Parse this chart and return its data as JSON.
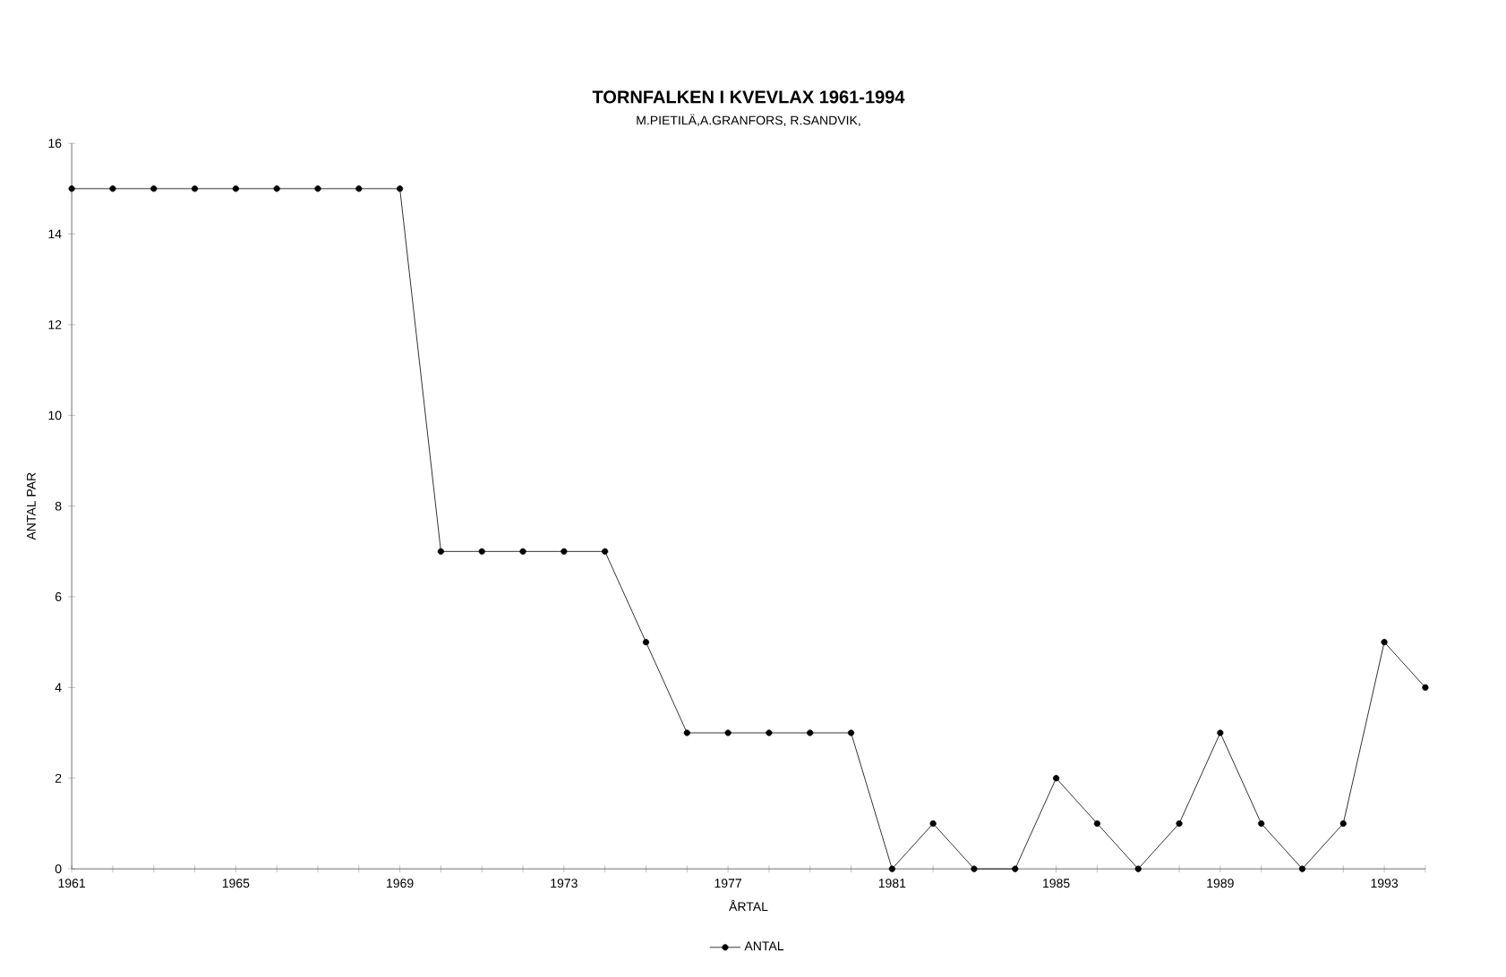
{
  "chart_data": {
    "type": "line",
    "title": "TORNFALKEN I KVEVLAX 1961-1994",
    "subtitle": "M.PIETILÄ,A.GRANFORS, R.SANDVIK,",
    "xlabel": "ÅRTAL",
    "ylabel": "ANTAL PAR",
    "x": [
      1961,
      1962,
      1963,
      1964,
      1965,
      1966,
      1967,
      1968,
      1969,
      1970,
      1971,
      1972,
      1973,
      1974,
      1975,
      1976,
      1977,
      1978,
      1979,
      1980,
      1981,
      1982,
      1983,
      1984,
      1985,
      1986,
      1987,
      1988,
      1989,
      1990,
      1991,
      1992,
      1993,
      1994
    ],
    "series": [
      {
        "name": "ANTAL",
        "color": "#000000",
        "values": [
          15,
          15,
          15,
          15,
          15,
          15,
          15,
          15,
          15,
          7,
          7,
          7,
          7,
          7,
          5,
          3,
          3,
          3,
          3,
          3,
          0,
          1,
          0,
          0,
          2,
          1,
          0,
          1,
          3,
          1,
          0,
          1,
          5,
          4
        ]
      }
    ],
    "xlim": [
      1961,
      1994
    ],
    "ylim": [
      0,
      16
    ],
    "xticks": [
      1961,
      {
        "value": 1962,
        "label": null
      },
      {
        "value": 1963,
        "label": null
      },
      {
        "value": 1964,
        "label": null
      },
      1965,
      {
        "value": 1966,
        "label": null
      },
      {
        "value": 1967,
        "label": null
      },
      {
        "value": 1968,
        "label": null
      },
      1969,
      {
        "value": 1970,
        "label": null
      },
      {
        "value": 1971,
        "label": null
      },
      {
        "value": 1972,
        "label": null
      },
      1973,
      {
        "value": 1974,
        "label": null
      },
      {
        "value": 1975,
        "label": null
      },
      {
        "value": 1976,
        "label": null
      },
      1977,
      {
        "value": 1978,
        "label": null
      },
      {
        "value": 1979,
        "label": null
      },
      {
        "value": 1980,
        "label": null
      },
      1981,
      {
        "value": 1982,
        "label": null
      },
      {
        "value": 1983,
        "label": null
      },
      {
        "value": 1984,
        "label": null
      },
      1985,
      {
        "value": 1986,
        "label": null
      },
      {
        "value": 1987,
        "label": null
      },
      {
        "value": 1988,
        "label": null
      },
      1989,
      {
        "value": 1990,
        "label": null
      },
      {
        "value": 1991,
        "label": null
      },
      {
        "value": 1992,
        "label": null
      },
      1993,
      {
        "value": 1994,
        "label": null
      }
    ],
    "yticks": [
      0,
      2,
      4,
      6,
      8,
      10,
      12,
      14,
      16
    ],
    "marker": "circle",
    "line_style": "solid",
    "legend": "bottom",
    "grid": false
  }
}
